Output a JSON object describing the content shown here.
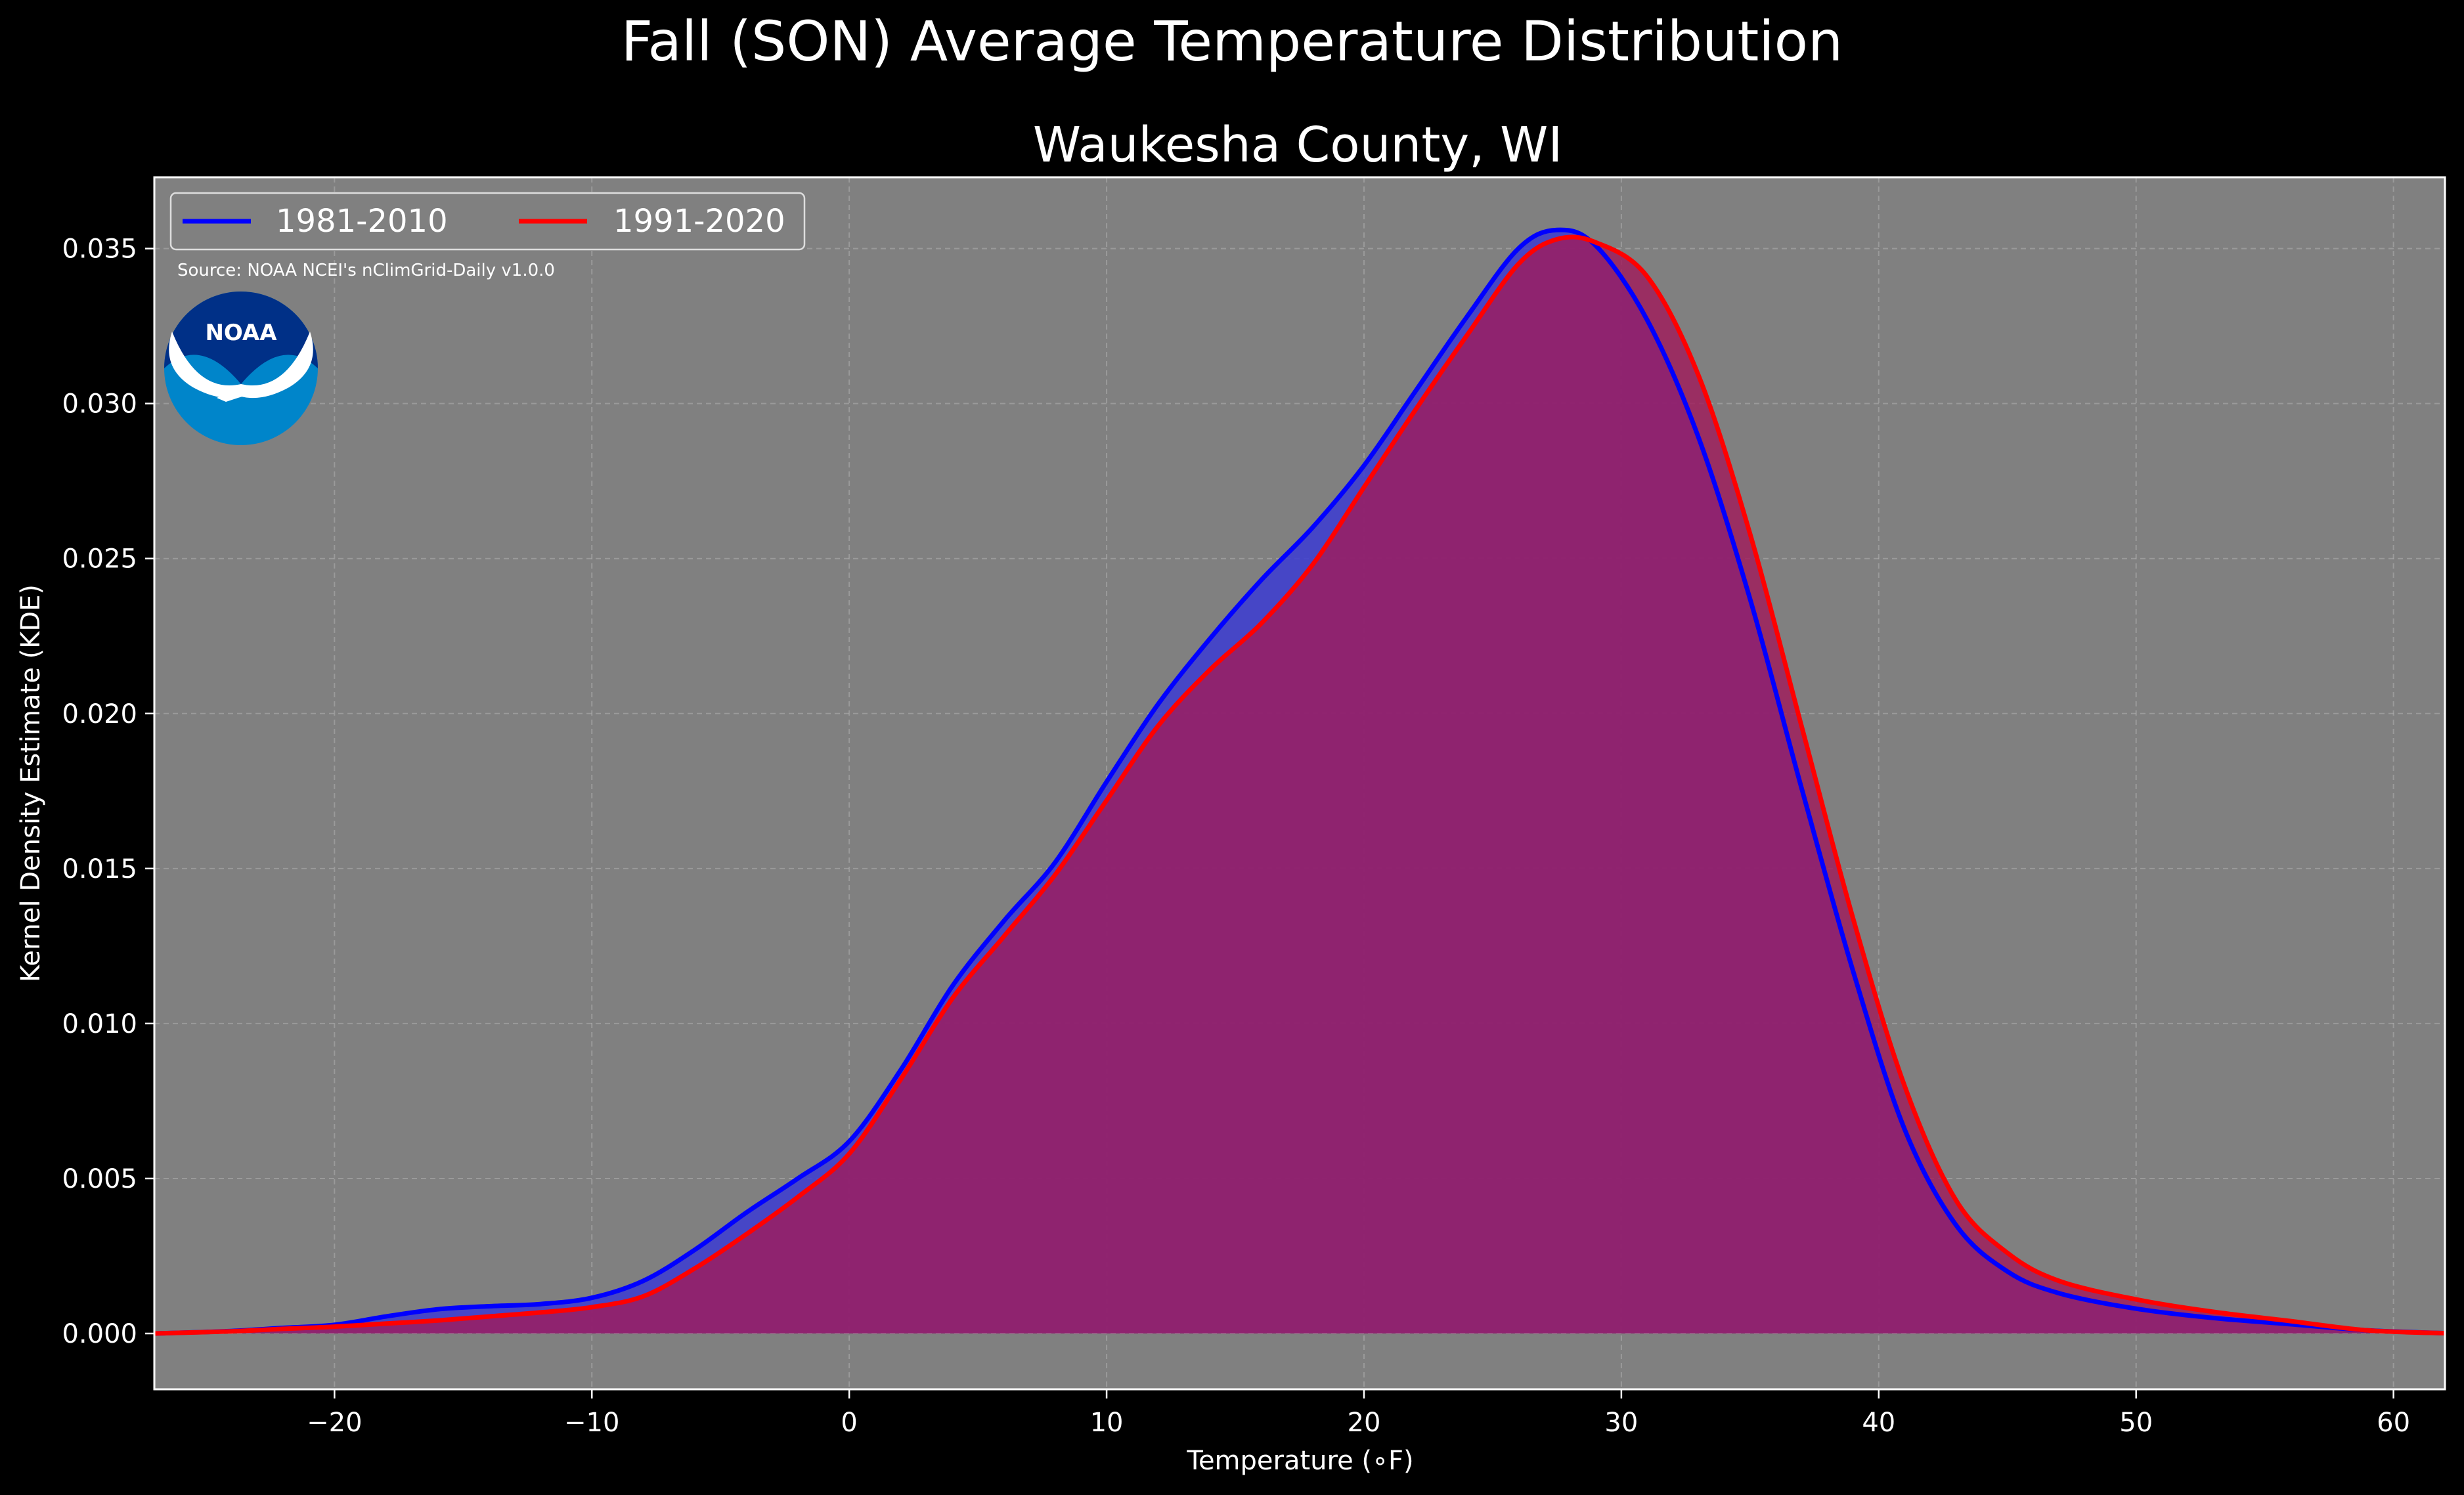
{
  "chart_data": {
    "type": "area",
    "title": "Fall (SON) Average Temperature Distribution",
    "subtitle": "Waukesha County, WI",
    "xlabel": "Temperature (∘F)",
    "ylabel": "Kernel Density Estimate (KDE)",
    "xlim": [
      -27,
      62
    ],
    "ylim": [
      -0.0018,
      0.0373
    ],
    "x_ticks": [
      -20,
      -10,
      0,
      10,
      20,
      30,
      40,
      50,
      60
    ],
    "x_tick_labels": [
      "−20",
      "−10",
      "0",
      "10",
      "20",
      "30",
      "40",
      "50",
      "60"
    ],
    "y_ticks": [
      0.0,
      0.005,
      0.01,
      0.015,
      0.02,
      0.025,
      0.03,
      0.035
    ],
    "y_tick_labels": [
      "0.000",
      "0.005",
      "0.010",
      "0.015",
      "0.020",
      "0.025",
      "0.030",
      "0.035"
    ],
    "grid": true,
    "legend_position": "top-left",
    "annotation": "Source: NOAA NCEI's nClimGrid-Daily v1.0.0",
    "series": [
      {
        "name": "1981-2010",
        "color": "#0000ff",
        "fill": "#3c3cd2",
        "x": [
          -27,
          -24,
          -22,
          -20,
          -18,
          -16,
          -14,
          -12,
          -10,
          -8,
          -6,
          -4,
          -2,
          0,
          2,
          4,
          6,
          8,
          10,
          12,
          14,
          16,
          18,
          20,
          22,
          24,
          26,
          27.5,
          29,
          31,
          33,
          35,
          37,
          39,
          41,
          43,
          45,
          47,
          50,
          53,
          56,
          59,
          62
        ],
        "y": [
          0.0,
          8e-05,
          0.00018,
          0.00028,
          0.00055,
          0.00078,
          0.00088,
          0.00095,
          0.00115,
          0.0017,
          0.0027,
          0.0039,
          0.005,
          0.0062,
          0.0085,
          0.0112,
          0.0133,
          0.0152,
          0.0178,
          0.0203,
          0.0224,
          0.0243,
          0.026,
          0.028,
          0.0304,
          0.0328,
          0.035,
          0.0356,
          0.0351,
          0.0327,
          0.0289,
          0.0237,
          0.0176,
          0.0117,
          0.0066,
          0.0035,
          0.002,
          0.0013,
          0.0008,
          0.0005,
          0.0003,
          0.0001,
          1e-05
        ]
      },
      {
        "name": "1991-2020",
        "color": "#ff0000",
        "fill": "#a01c5c",
        "x": [
          -27,
          -24,
          -22,
          -20,
          -18,
          -16,
          -14,
          -12,
          -10,
          -8,
          -6,
          -4,
          -2,
          0,
          2,
          4,
          6,
          8,
          10,
          12,
          14,
          16,
          18,
          20,
          22,
          24,
          26,
          27.5,
          29,
          31,
          33,
          35,
          37,
          39,
          41,
          43,
          45,
          47,
          50,
          53,
          56,
          59,
          62
        ],
        "y": [
          0.0,
          7e-05,
          0.00015,
          0.00022,
          0.00032,
          0.00042,
          0.00055,
          0.00068,
          0.00085,
          0.0012,
          0.0021,
          0.0032,
          0.0044,
          0.0058,
          0.0082,
          0.0108,
          0.0128,
          0.0148,
          0.0172,
          0.0196,
          0.0214,
          0.0229,
          0.0248,
          0.0273,
          0.0298,
          0.0322,
          0.0345,
          0.0353,
          0.0352,
          0.0341,
          0.0309,
          0.0258,
          0.0196,
          0.0134,
          0.008,
          0.0043,
          0.0026,
          0.0017,
          0.0011,
          0.0007,
          0.0004,
          0.0001,
          1e-05
        ]
      }
    ]
  }
}
